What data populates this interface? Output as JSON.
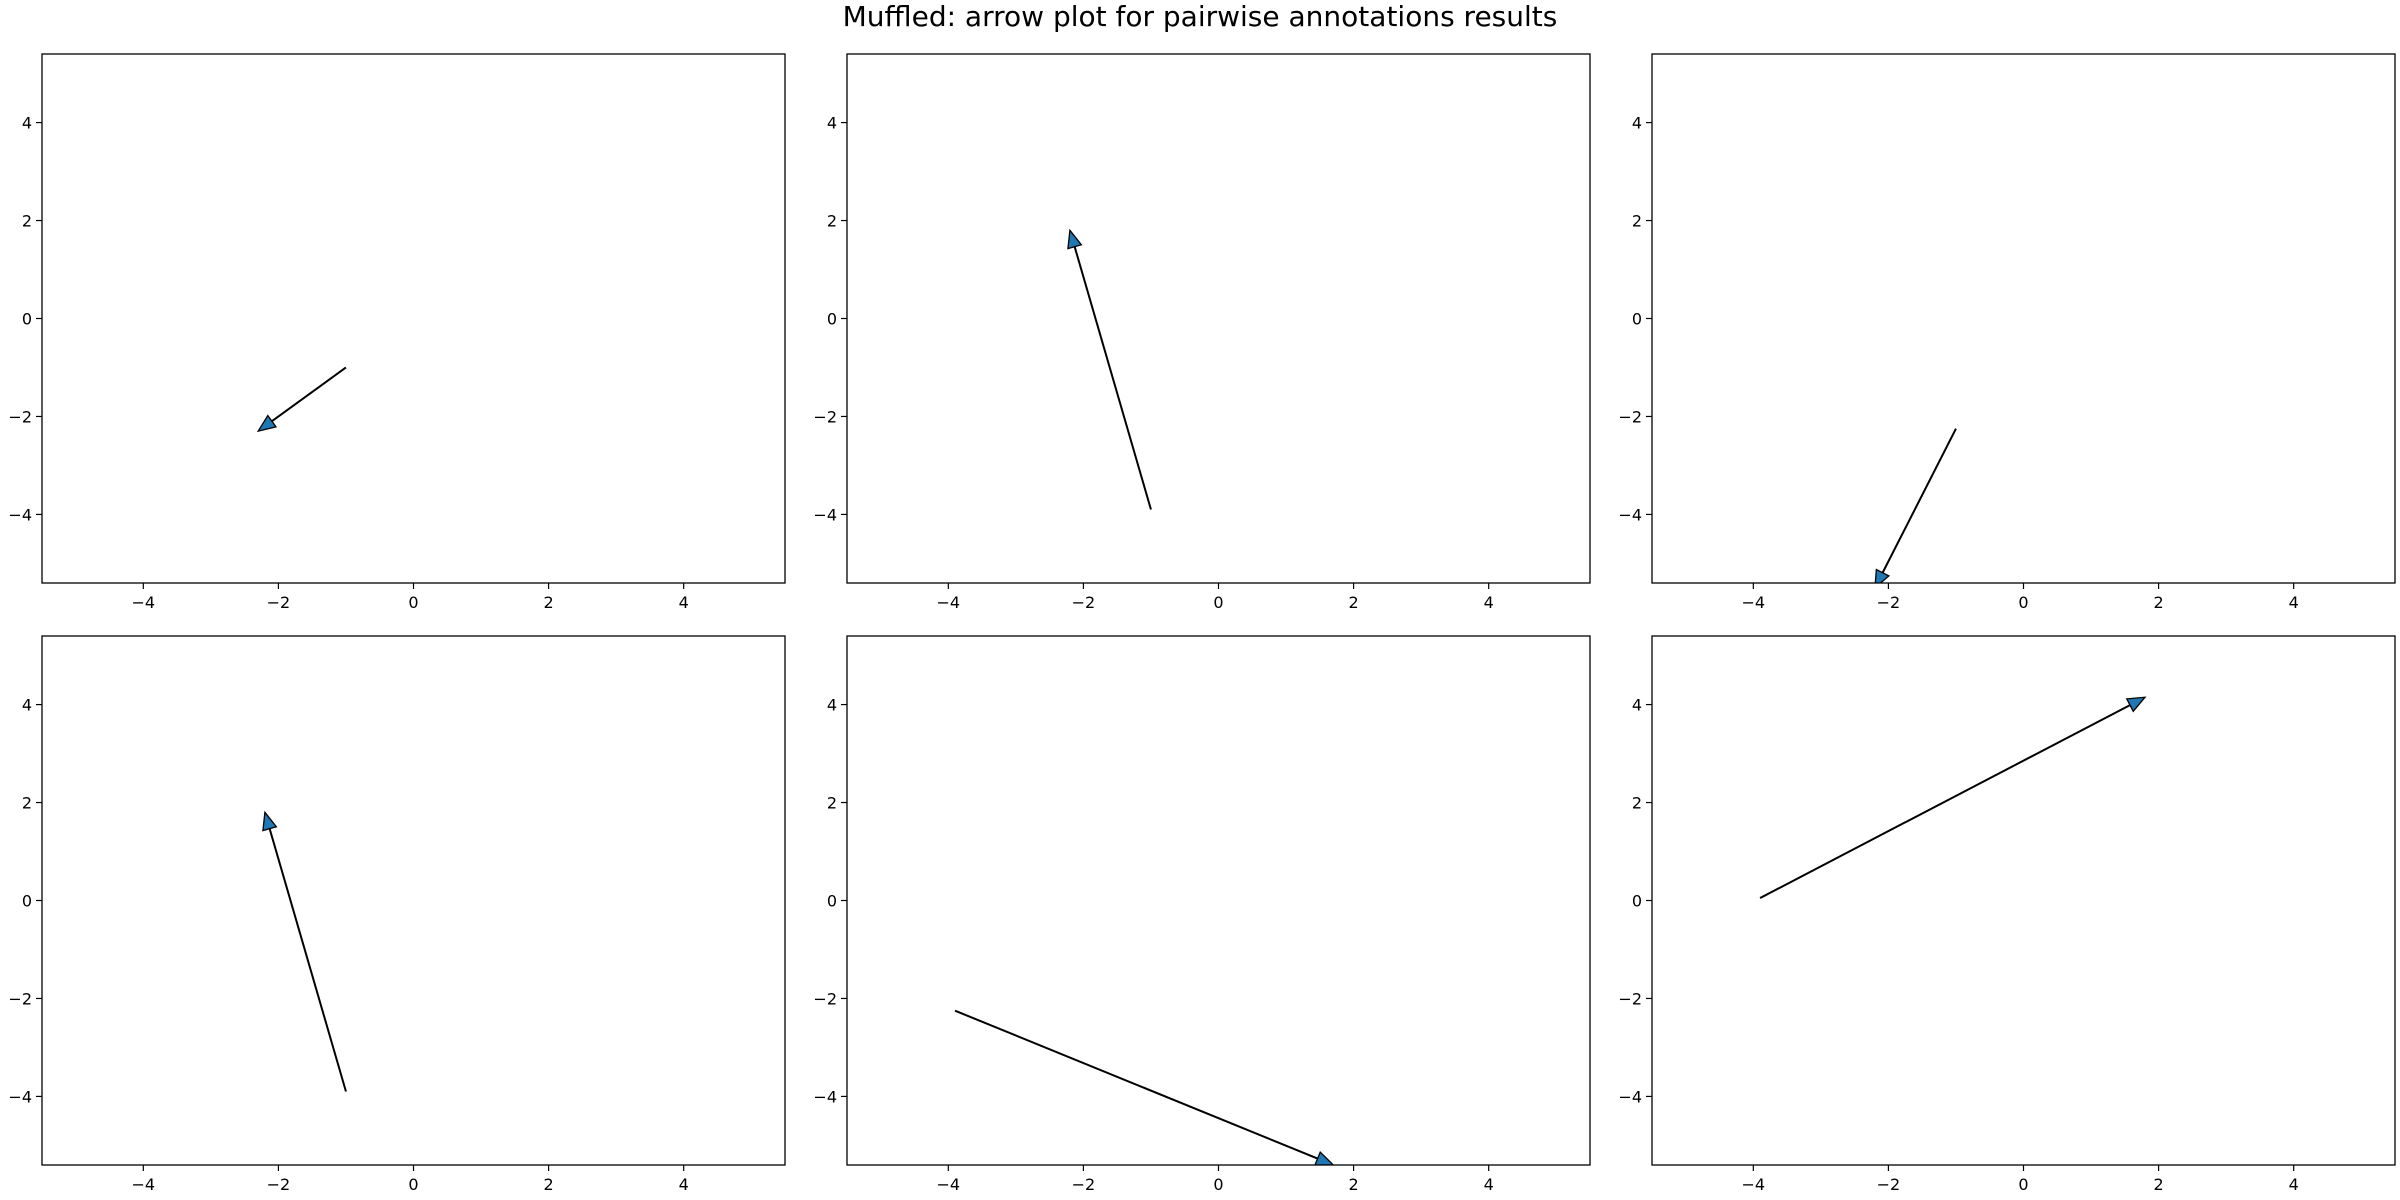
{
  "title": "Muffled: arrow plot for pairwise annotations results",
  "chart_data": {
    "type": "scatter",
    "subtype": "arrow",
    "title": "Muffled: arrow plot for pairwise annotations results",
    "layout": "2 rows x 3 columns",
    "arrow_fill_color": "#1f77b4",
    "arrow_line_color": "#000000",
    "panels": [
      {
        "xlim": [
          -5.5,
          5.5
        ],
        "ylim": [
          -5.4,
          5.4
        ],
        "xticks": [
          "−4",
          "−2",
          "0",
          "2",
          "4"
        ],
        "xtick_values": [
          -4,
          -2,
          0,
          2,
          4
        ],
        "yticks": [
          "−4",
          "−2",
          "0",
          "2",
          "4"
        ],
        "ytick_values": [
          -4,
          -2,
          0,
          2,
          4
        ],
        "arrow": {
          "x_start": -1.0,
          "y_start": -1.0,
          "x_end": -2.3,
          "y_end": -2.3
        }
      },
      {
        "xlim": [
          -5.5,
          5.5
        ],
        "ylim": [
          -5.4,
          5.4
        ],
        "xticks": [
          "−4",
          "−2",
          "0",
          "2",
          "4"
        ],
        "xtick_values": [
          -4,
          -2,
          0,
          2,
          4
        ],
        "yticks": [
          "−4",
          "−2",
          "0",
          "2",
          "4"
        ],
        "ytick_values": [
          -4,
          -2,
          0,
          2,
          4
        ],
        "arrow": {
          "x_start": -1.0,
          "y_start": -3.9,
          "x_end": -2.2,
          "y_end": 1.8
        }
      },
      {
        "xlim": [
          -5.5,
          5.5
        ],
        "ylim": [
          -5.4,
          5.4
        ],
        "xticks": [
          "−4",
          "−2",
          "0",
          "2",
          "4"
        ],
        "xtick_values": [
          -4,
          -2,
          0,
          2,
          4
        ],
        "yticks": [
          "−4",
          "−2",
          "0",
          "2",
          "4"
        ],
        "ytick_values": [
          -4,
          -2,
          0,
          2,
          4
        ],
        "arrow": {
          "x_start": -1.0,
          "y_start": -2.25,
          "x_end": -2.2,
          "y_end": -5.5
        }
      },
      {
        "xlim": [
          -5.5,
          5.5
        ],
        "ylim": [
          -5.4,
          5.4
        ],
        "xticks": [
          "−4",
          "−2",
          "0",
          "2",
          "4"
        ],
        "xtick_values": [
          -4,
          -2,
          0,
          2,
          4
        ],
        "yticks": [
          "−4",
          "−2",
          "0",
          "2",
          "4"
        ],
        "ytick_values": [
          -4,
          -2,
          0,
          2,
          4
        ],
        "arrow": {
          "x_start": -1.0,
          "y_start": -3.9,
          "x_end": -2.2,
          "y_end": 1.8
        }
      },
      {
        "xlim": [
          -5.5,
          5.5
        ],
        "ylim": [
          -5.4,
          5.4
        ],
        "xticks": [
          "−4",
          "−2",
          "0",
          "2",
          "4"
        ],
        "xtick_values": [
          -4,
          -2,
          0,
          2,
          4
        ],
        "yticks": [
          "−4",
          "−2",
          "0",
          "2",
          "4"
        ],
        "ytick_values": [
          -4,
          -2,
          0,
          2,
          4
        ],
        "arrow": {
          "x_start": -3.9,
          "y_start": -2.25,
          "x_end": 1.7,
          "y_end": -5.4
        }
      },
      {
        "xlim": [
          -5.5,
          5.5
        ],
        "ylim": [
          -5.4,
          5.4
        ],
        "xticks": [
          "−4",
          "−2",
          "0",
          "2",
          "4"
        ],
        "xtick_values": [
          -4,
          -2,
          0,
          2,
          4
        ],
        "yticks": [
          "−4",
          "−2",
          "0",
          "2",
          "4"
        ],
        "ytick_values": [
          -4,
          -2,
          0,
          2,
          4
        ],
        "arrow": {
          "x_start": -3.9,
          "y_start": 0.05,
          "x_end": 1.8,
          "y_end": 4.15
        }
      }
    ]
  }
}
